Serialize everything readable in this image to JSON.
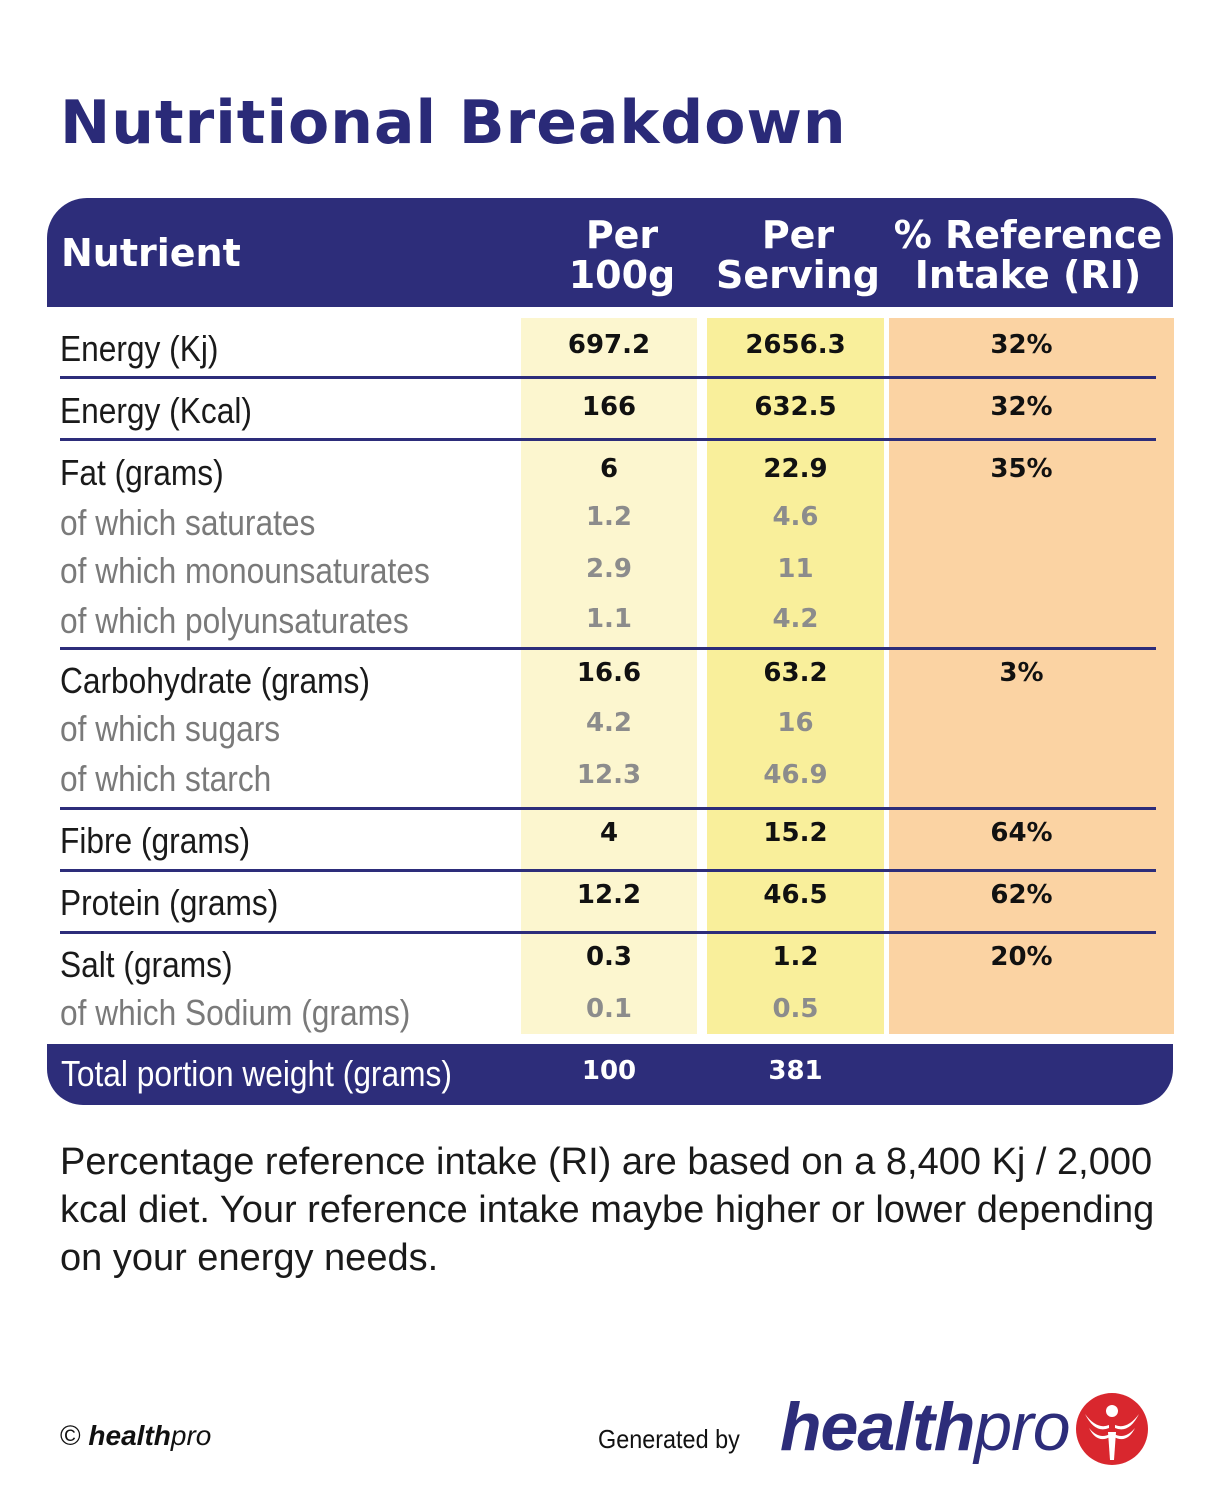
{
  "title": "Nutritional Breakdown",
  "header": {
    "nutrient": "Nutrient",
    "per100_line1": "Per",
    "per100_line2": "100g",
    "perserving_line1": "Per",
    "perserving_line2": "Serving",
    "ri_line1": "% Reference",
    "ri_line2": "Intake (RI)"
  },
  "rows": [
    {
      "label": "Energy (Kj)",
      "per100": "697.2",
      "perserving": "2656.3",
      "ri": "32%"
    },
    {
      "label": "Energy (Kcal)",
      "per100": "166",
      "perserving": "632.5",
      "ri": "32%"
    },
    {
      "label": "Fat (grams)",
      "per100": "6",
      "perserving": "22.9",
      "ri": "35%"
    },
    {
      "label": "of which saturates",
      "per100": "1.2",
      "perserving": "4.6",
      "ri": ""
    },
    {
      "label": "of which monounsaturates",
      "per100": "2.9",
      "perserving": "11",
      "ri": ""
    },
    {
      "label": "of which polyunsaturates",
      "per100": "1.1",
      "perserving": "4.2",
      "ri": ""
    },
    {
      "label": "Carbohydrate (grams)",
      "per100": "16.6",
      "perserving": "63.2",
      "ri": "3%"
    },
    {
      "label": "of which sugars",
      "per100": "4.2",
      "perserving": "16",
      "ri": ""
    },
    {
      "label": "of which starch",
      "per100": "12.3",
      "perserving": "46.9",
      "ri": ""
    },
    {
      "label": "Fibre (grams)",
      "per100": "4",
      "perserving": "15.2",
      "ri": "64%"
    },
    {
      "label": "Protein (grams)",
      "per100": "12.2",
      "perserving": "46.5",
      "ri": "62%"
    },
    {
      "label": "Salt (grams)",
      "per100": "0.3",
      "perserving": "1.2",
      "ri": "20%"
    },
    {
      "label": "of which Sodium (grams)",
      "per100": "0.1",
      "perserving": "0.5",
      "ri": ""
    }
  ],
  "total": {
    "label": "Total portion weight (grams)",
    "per100": "100",
    "perserving": "381"
  },
  "note": "Percentage reference intake (RI) are based on a 8,400 Kj / 2,000 kcal diet. Your reference intake maybe higher or lower depending on your energy needs.",
  "footer": {
    "copyright_symbol": "©",
    "copyright_bold": "health",
    "copyright_italic": "pro",
    "generated_by": "Generated by",
    "brand_bold": "health",
    "brand_light": "pro"
  },
  "colors": {
    "navy": "#2d2d7a",
    "per100_bg": "#fcf6cf",
    "perserving_bg": "#f9ef9b",
    "ri_bg": "#fbd3a3",
    "logo_red": "#d9272e"
  }
}
